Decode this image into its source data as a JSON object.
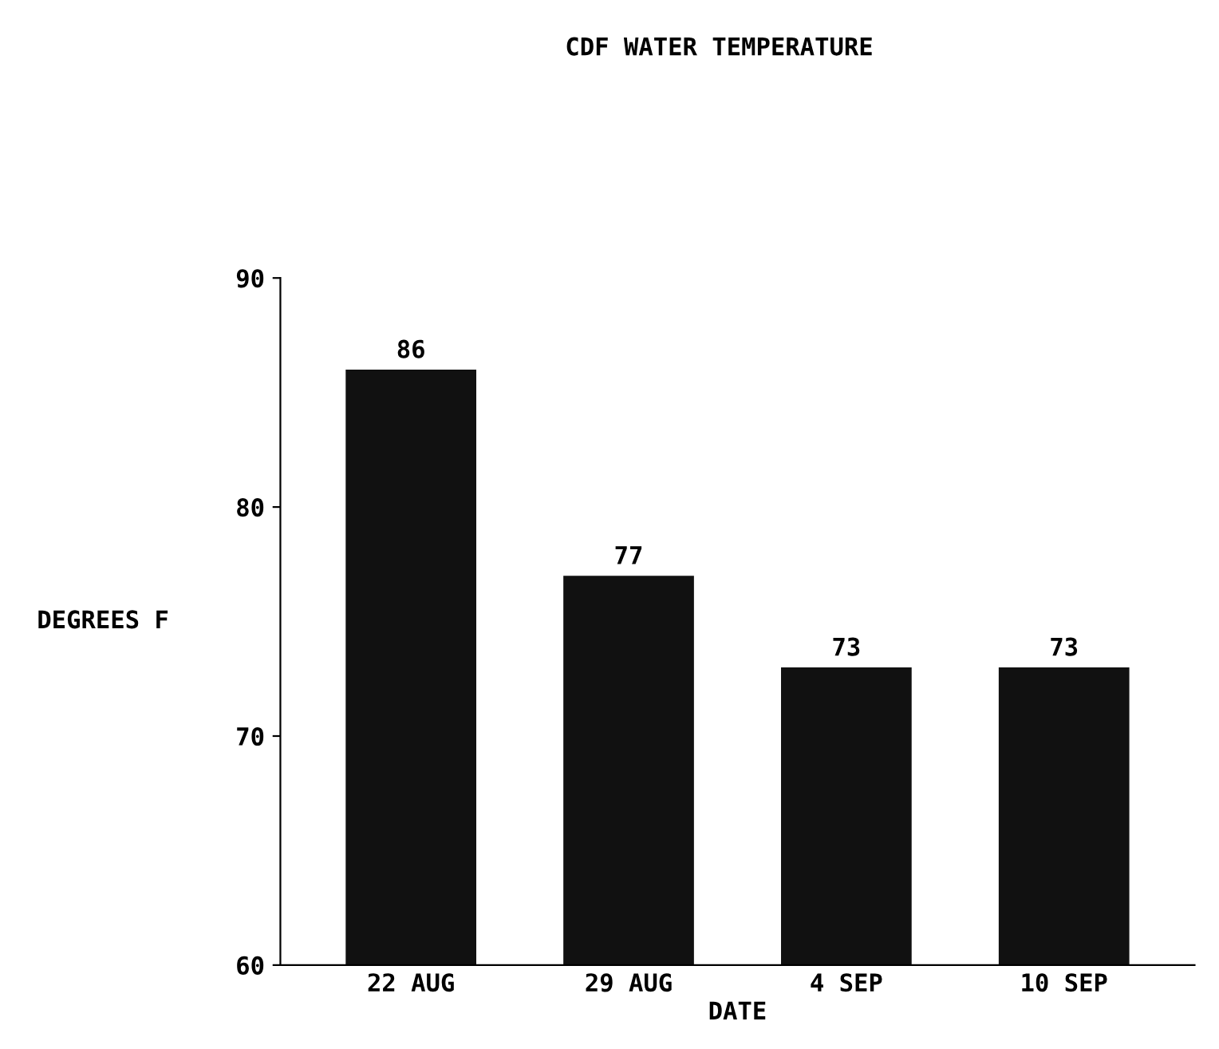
{
  "chart_data": {
    "type": "bar",
    "title": "CDF WATER TEMPERATURE",
    "xlabel": "DATE",
    "ylabel": "DEGREES F",
    "categories": [
      "22 AUG",
      "29 AUG",
      "4 SEP",
      "10 SEP"
    ],
    "values": [
      86,
      77,
      73,
      73
    ],
    "color": "#111111",
    "ylim": [
      60,
      90
    ],
    "yticks": [
      60,
      70,
      80,
      90
    ],
    "grid": false,
    "data_labels": true
  }
}
